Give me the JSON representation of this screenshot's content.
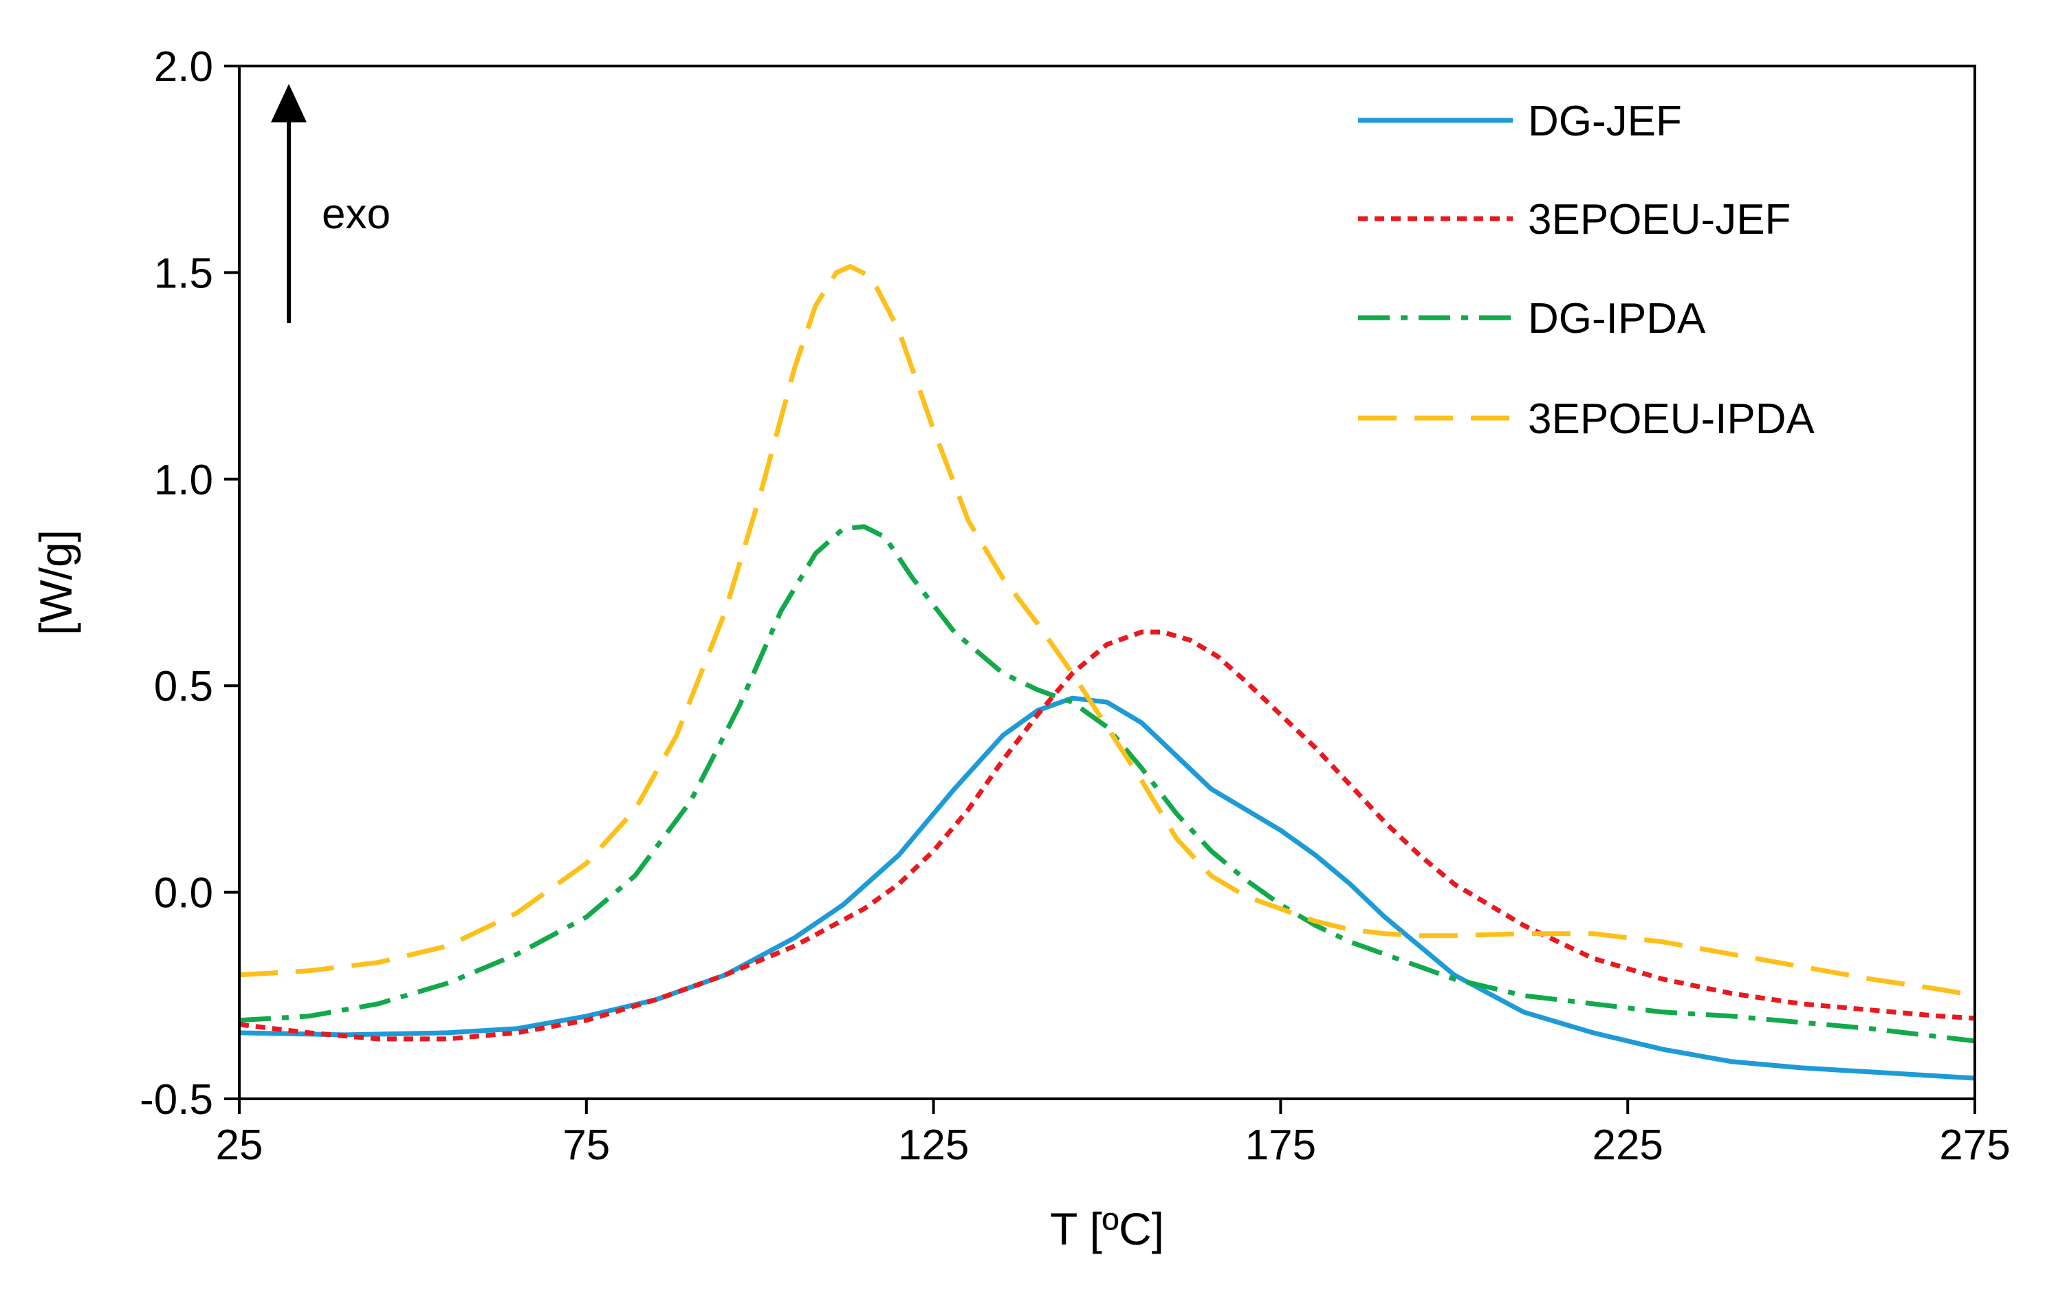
{
  "chart_data": {
    "type": "line",
    "title": "",
    "xlabel": "T [ºC]",
    "ylabel": "[W/g]",
    "xlim": [
      25,
      275
    ],
    "ylim": [
      -0.5,
      2.0
    ],
    "xticks": [
      25,
      75,
      125,
      175,
      225,
      275
    ],
    "yticks": [
      -0.5,
      0.0,
      0.5,
      1.0,
      1.5,
      2.0
    ],
    "ytick_labels": [
      "-0.5",
      "0.0",
      "0.5",
      "1.0",
      "1.5",
      "2.0"
    ],
    "grid": false,
    "legend_position": "top-right",
    "annotation": {
      "text": "exo",
      "arrow": "up"
    },
    "series": [
      {
        "name": "DG-JEF",
        "color": "#1E9BD7",
        "dash": "solid",
        "x": [
          25,
          40,
          55,
          65,
          75,
          85,
          95,
          105,
          112,
          120,
          128,
          135,
          140,
          145,
          150,
          155,
          160,
          165,
          170,
          175,
          180,
          185,
          190,
          195,
          200,
          210,
          220,
          230,
          240,
          250,
          260,
          270,
          275
        ],
        "y": [
          -0.34,
          -0.345,
          -0.34,
          -0.33,
          -0.3,
          -0.26,
          -0.2,
          -0.11,
          -0.03,
          0.09,
          0.25,
          0.38,
          0.44,
          0.47,
          0.46,
          0.41,
          0.33,
          0.25,
          0.2,
          0.15,
          0.09,
          0.02,
          -0.06,
          -0.13,
          -0.2,
          -0.29,
          -0.34,
          -0.38,
          -0.41,
          -0.425,
          -0.435,
          -0.445,
          -0.45
        ]
      },
      {
        "name": "3EPOEU-JEF",
        "color": "#E8191F",
        "dash": "dotted",
        "x": [
          25,
          35,
          45,
          55,
          65,
          75,
          85,
          95,
          105,
          115,
          120,
          125,
          130,
          135,
          140,
          145,
          150,
          155,
          158,
          162,
          166,
          170,
          175,
          180,
          185,
          190,
          195,
          200,
          210,
          220,
          230,
          240,
          250,
          260,
          270,
          275
        ],
        "y": [
          -0.32,
          -0.34,
          -0.355,
          -0.355,
          -0.34,
          -0.31,
          -0.26,
          -0.2,
          -0.13,
          -0.04,
          0.02,
          0.1,
          0.2,
          0.32,
          0.43,
          0.53,
          0.6,
          0.63,
          0.63,
          0.61,
          0.57,
          0.51,
          0.43,
          0.35,
          0.26,
          0.17,
          0.09,
          0.02,
          -0.08,
          -0.16,
          -0.21,
          -0.245,
          -0.27,
          -0.285,
          -0.3,
          -0.305
        ]
      },
      {
        "name": "DG-IPDA",
        "color": "#12A94B",
        "dash": "dashdot",
        "x": [
          25,
          35,
          45,
          55,
          65,
          75,
          82,
          90,
          97,
          103,
          108,
          112,
          115,
          118,
          122,
          128,
          135,
          140,
          145,
          150,
          155,
          160,
          165,
          170,
          175,
          180,
          185,
          190,
          195,
          200,
          210,
          220,
          230,
          240,
          250,
          260,
          270,
          275
        ],
        "y": [
          -0.31,
          -0.3,
          -0.27,
          -0.22,
          -0.15,
          -0.06,
          0.04,
          0.22,
          0.45,
          0.68,
          0.82,
          0.88,
          0.885,
          0.86,
          0.76,
          0.63,
          0.53,
          0.49,
          0.46,
          0.4,
          0.3,
          0.19,
          0.1,
          0.03,
          -0.03,
          -0.08,
          -0.12,
          -0.15,
          -0.18,
          -0.21,
          -0.25,
          -0.27,
          -0.29,
          -0.3,
          -0.315,
          -0.33,
          -0.35,
          -0.36
        ]
      },
      {
        "name": "3EPOEU-IPDA",
        "color": "#FDBF1A",
        "dash": "dashed",
        "x": [
          25,
          35,
          45,
          55,
          65,
          75,
          82,
          88,
          95,
          100,
          105,
          108,
          111,
          113,
          116,
          120,
          125,
          130,
          135,
          140,
          145,
          150,
          155,
          160,
          165,
          170,
          175,
          180,
          185,
          190,
          195,
          200,
          210,
          220,
          225,
          230,
          240,
          250,
          260,
          270,
          275
        ],
        "y": [
          -0.2,
          -0.19,
          -0.17,
          -0.13,
          -0.05,
          0.07,
          0.2,
          0.38,
          0.68,
          0.96,
          1.27,
          1.42,
          1.5,
          1.515,
          1.49,
          1.36,
          1.12,
          0.9,
          0.76,
          0.65,
          0.53,
          0.4,
          0.27,
          0.13,
          0.04,
          -0.01,
          -0.04,
          -0.07,
          -0.09,
          -0.1,
          -0.105,
          -0.105,
          -0.1,
          -0.1,
          -0.11,
          -0.12,
          -0.15,
          -0.18,
          -0.21,
          -0.235,
          -0.25
        ]
      }
    ]
  }
}
